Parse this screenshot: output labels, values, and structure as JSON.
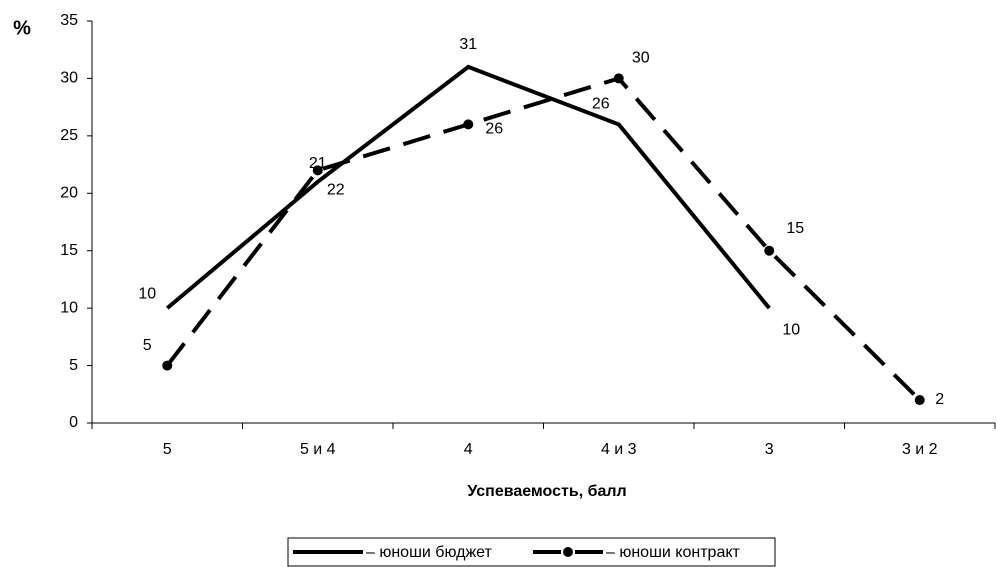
{
  "chart_data": {
    "type": "line",
    "y_label": "%",
    "x_label": "Успеваемость, балл",
    "categories": [
      "5",
      "5 и 4",
      "4",
      "4 и 3",
      "3",
      "3 и 2"
    ],
    "series": [
      {
        "name": "– юноши бюджет",
        "color": "#000000",
        "dashed": false,
        "markers": false,
        "values": [
          10,
          21,
          31,
          26,
          10,
          null
        ]
      },
      {
        "name": "– юноши контракт",
        "color": "#000000",
        "dashed": true,
        "markers": true,
        "values": [
          5,
          22,
          26,
          30,
          15,
          2
        ]
      }
    ],
    "ylim": [
      0,
      35
    ],
    "yticks": [
      0,
      5,
      10,
      15,
      20,
      25,
      30,
      35
    ],
    "legend": "bottom"
  }
}
